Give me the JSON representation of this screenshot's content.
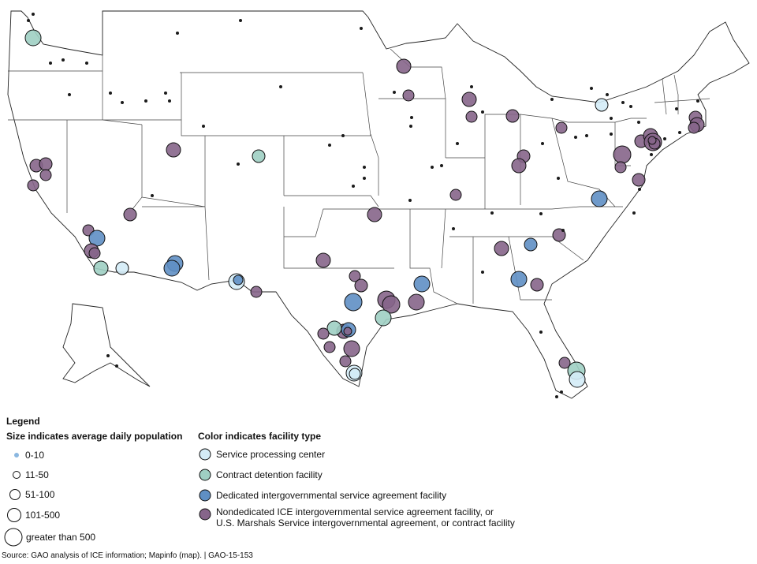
{
  "colors": {
    "service_processing": "#d4ecf7",
    "contract_detention": "#9fcfc3",
    "dedicated_igsa": "#5f8fc4",
    "nondedicated": "#86658a",
    "dot": "#1a1a1a"
  },
  "legend": {
    "title": "Legend",
    "size_header": "Size indicates average daily population",
    "color_header": "Color indicates facility type",
    "sizes": [
      {
        "label": "0-10",
        "size_class": 1
      },
      {
        "label": "11-50",
        "size_class": 2
      },
      {
        "label": "51-100",
        "size_class": 3
      },
      {
        "label": "101-500",
        "size_class": 4
      },
      {
        "label": "greater than 500",
        "size_class": 5
      }
    ],
    "types": [
      {
        "key": "service_processing",
        "label": "Service processing center"
      },
      {
        "key": "contract_detention",
        "label": "Contract detention facility"
      },
      {
        "key": "dedicated_igsa",
        "label": "Dedicated intergovernmental service agreement facility"
      },
      {
        "key": "nondedicated",
        "label_line1": "Nondedicated ICE intergovernmental service agreement facility, or",
        "label_line2": "U.S. Marshals Service intergovernmental agreement, or contract facility"
      }
    ]
  },
  "source": "Source: GAO analysis of ICE information; Mapinfo (map).  |  GAO-15-153"
}
